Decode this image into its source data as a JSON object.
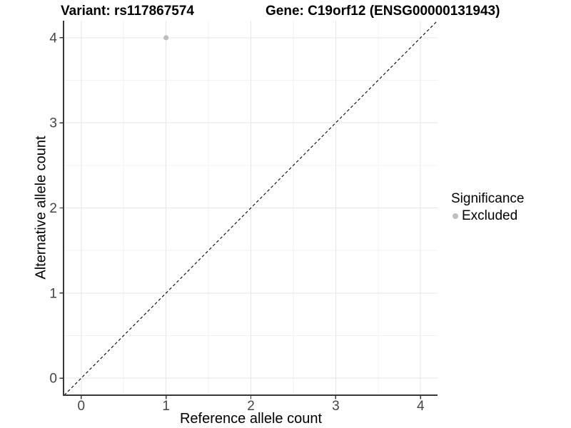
{
  "chart_data": {
    "type": "scatter",
    "title_left": "Variant: rs117867574",
    "title_right": "Gene: C19orf12 (ENSG00000131943)",
    "xlabel": "Reference allele count",
    "ylabel": "Alternative allele count",
    "xlim": [
      -0.2,
      4.2
    ],
    "ylim": [
      -0.2,
      4.2
    ],
    "xticks": [
      0,
      1,
      2,
      3,
      4
    ],
    "yticks": [
      0,
      1,
      2,
      3,
      4
    ],
    "xticks_minor": [
      0.5,
      1.5,
      2.5,
      3.5
    ],
    "yticks_minor": [
      0.5,
      1.5,
      2.5,
      3.5
    ],
    "grid": true,
    "identity_line": {
      "style": "dashed",
      "color": "#000000",
      "from": -0.2,
      "to": 4.2
    },
    "series": [
      {
        "name": "Excluded",
        "color": "#bebebe",
        "point_radius": 3.6,
        "points": [
          [
            1,
            4
          ]
        ]
      }
    ],
    "legend": {
      "title": "Significance",
      "position": "right",
      "entries": [
        {
          "label": "Excluded",
          "color": "#bebebe"
        }
      ]
    },
    "colors": {
      "background": "#ffffff",
      "grid_major": "#e6e6e6",
      "grid_minor": "#f2f2f2",
      "axis_line": "#383838",
      "tick_mark": "#383838",
      "tick_label": "#454545",
      "title_text": "#000000"
    }
  }
}
